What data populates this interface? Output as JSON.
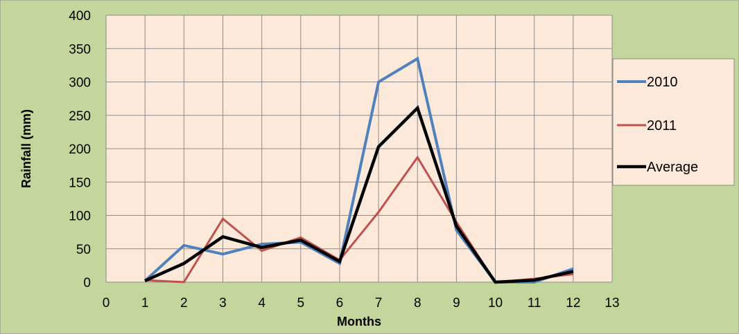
{
  "chart_data": {
    "type": "line",
    "title": "",
    "xlabel": "Months",
    "ylabel": "Rainfall (mm)",
    "xlim": [
      0,
      13
    ],
    "ylim": [
      0,
      400
    ],
    "x_ticks": [
      0,
      1,
      2,
      3,
      4,
      5,
      6,
      7,
      8,
      9,
      10,
      11,
      12,
      13
    ],
    "y_ticks": [
      0,
      50,
      100,
      150,
      200,
      250,
      300,
      350,
      400
    ],
    "grid": true,
    "legend_position": "right",
    "colors": {
      "figure_background": "#c3d69b",
      "plot_background": "#fde9d9",
      "legend_background": "#fde9d9",
      "grid": "#8c8c8c"
    },
    "series": [
      {
        "name": "2010",
        "color": "#4f81bd",
        "x": [
          1,
          2,
          3,
          4,
          5,
          6,
          7,
          8,
          9,
          10,
          11,
          12
        ],
        "y": [
          2,
          55,
          42,
          57,
          60,
          28,
          300,
          335,
          78,
          0,
          0,
          20
        ]
      },
      {
        "name": "2011",
        "color": "#c0504d",
        "x": [
          1,
          2,
          3,
          4,
          5,
          6,
          7,
          8,
          9,
          10,
          11,
          12
        ],
        "y": [
          3,
          0,
          95,
          47,
          67,
          33,
          105,
          187,
          90,
          0,
          5,
          12
        ]
      },
      {
        "name": "Average",
        "color": "#000000",
        "x": [
          1,
          2,
          3,
          4,
          5,
          6,
          7,
          8,
          9,
          10,
          11,
          12
        ],
        "y": [
          2,
          28,
          68,
          52,
          63,
          31,
          203,
          261,
          84,
          0,
          3,
          16
        ]
      }
    ]
  }
}
